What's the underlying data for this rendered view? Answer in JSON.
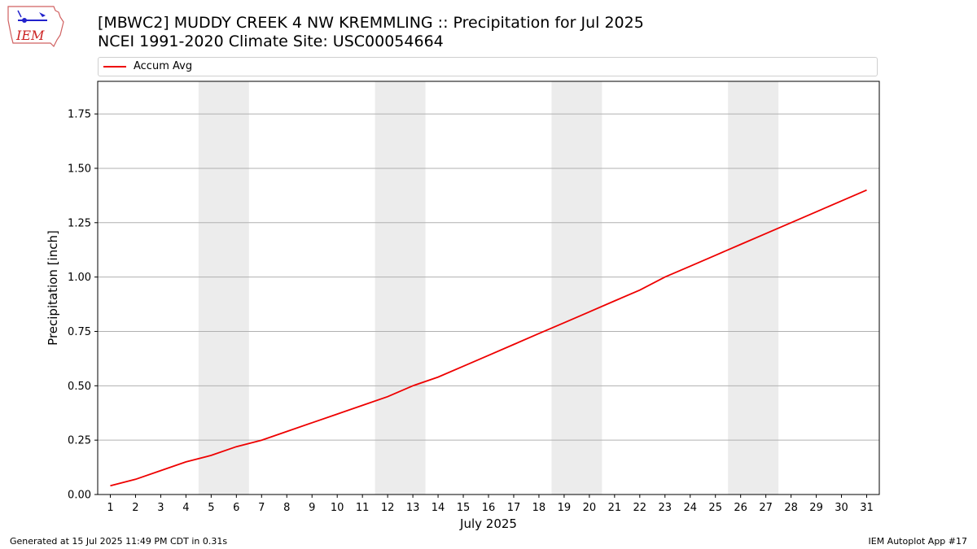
{
  "header": {
    "title": "[MBWC2] MUDDY CREEK 4 NW KREMMLING :: Precipitation for Jul 2025",
    "subtitle": "NCEI 1991-2020 Climate Site: USC00054664"
  },
  "logo": {
    "icon": "iem-logo-icon",
    "text": "IEM"
  },
  "footer": {
    "generated": "Generated at 15 Jul 2025 11:49 PM CDT in 0.31s",
    "app": "IEM Autoplot App #17"
  },
  "colors": {
    "line": "#ee0000",
    "weekend": "#ececec",
    "grid": "#b0b0b0"
  },
  "chart_data": {
    "type": "line",
    "xlabel": "July 2025",
    "ylabel": "Precipitation [inch]",
    "x": [
      1,
      2,
      3,
      4,
      5,
      6,
      7,
      8,
      9,
      10,
      11,
      12,
      13,
      14,
      15,
      16,
      17,
      18,
      19,
      20,
      21,
      22,
      23,
      24,
      25,
      26,
      27,
      28,
      29,
      30,
      31
    ],
    "xlim": [
      0.5,
      31.5
    ],
    "ylim": [
      0,
      1.9
    ],
    "yticks": [
      0.0,
      0.25,
      0.5,
      0.75,
      1.0,
      1.25,
      1.5,
      1.75
    ],
    "ytick_labels": [
      "0.00",
      "0.25",
      "0.50",
      "0.75",
      "1.00",
      "1.25",
      "1.50",
      "1.75"
    ],
    "grid": "horizontal",
    "legend": "top",
    "series": [
      {
        "name": "Accum Avg",
        "values": [
          0.04,
          0.07,
          0.11,
          0.15,
          0.18,
          0.22,
          0.25,
          0.29,
          0.33,
          0.37,
          0.41,
          0.45,
          0.5,
          0.54,
          0.59,
          0.64,
          0.69,
          0.74,
          0.79,
          0.84,
          0.89,
          0.94,
          1.0,
          1.05,
          1.1,
          1.15,
          1.2,
          1.25,
          1.3,
          1.35,
          1.4
        ]
      }
    ],
    "weekend_bands": [
      [
        5,
        6
      ],
      [
        12,
        13
      ],
      [
        19,
        20
      ],
      [
        26,
        27
      ]
    ]
  }
}
